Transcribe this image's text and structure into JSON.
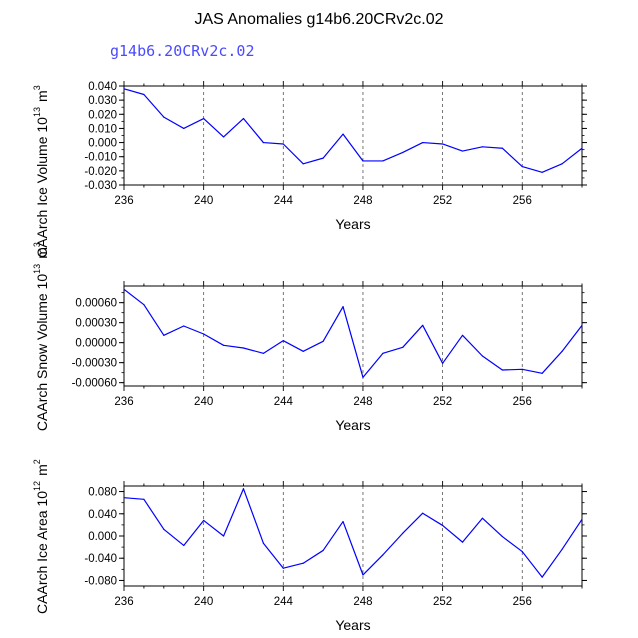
{
  "title": "JAS Anomalies g14b6.20CRv2c.02",
  "subtitle": "g14b6.20CRv2c.02",
  "colors": {
    "series": "#0000ff",
    "subtitle": "#4a4aff",
    "axis": "#000000",
    "grid": "#555555"
  },
  "chart_data": [
    {
      "type": "line",
      "name": "ice-volume",
      "ylabel": "CAArch Ice Volume",
      "ylabel_unit": "10<13> m<3>",
      "xlabel": "Years",
      "x": [
        236,
        237,
        238,
        239,
        240,
        241,
        242,
        243,
        244,
        245,
        246,
        247,
        248,
        249,
        250,
        251,
        252,
        253,
        254,
        255,
        256,
        257,
        258,
        259
      ],
      "values": [
        0.038,
        0.034,
        0.018,
        0.01,
        0.017,
        0.004,
        0.017,
        0.0,
        -0.001,
        -0.015,
        -0.011,
        0.006,
        -0.013,
        -0.013,
        -0.007,
        0.0,
        -0.001,
        -0.006,
        -0.003,
        -0.004,
        -0.017,
        -0.021,
        -0.015,
        -0.004
      ],
      "xlim": [
        236,
        259
      ],
      "ylim": [
        -0.03,
        0.04
      ],
      "yticks": [
        -0.03,
        -0.02,
        -0.01,
        0.0,
        0.01,
        0.02,
        0.03,
        0.04
      ],
      "ytick_labels": [
        "-0.030",
        "-0.020",
        "-0.010",
        "0.000",
        "0.010",
        "0.020",
        "0.030",
        "0.040"
      ],
      "xticks": [
        236,
        240,
        244,
        248,
        252,
        256
      ],
      "xtick_labels": [
        "236",
        "240",
        "244",
        "248",
        "252",
        "256"
      ],
      "gridlines_x": [
        240,
        244,
        248,
        252,
        256
      ]
    },
    {
      "type": "line",
      "name": "snow-volume",
      "ylabel": "CAArch Snow Volume",
      "ylabel_unit": "10<13> m<3>",
      "xlabel": "Years",
      "x": [
        236,
        237,
        238,
        239,
        240,
        241,
        242,
        243,
        244,
        245,
        246,
        247,
        248,
        249,
        250,
        251,
        252,
        253,
        254,
        255,
        256,
        257,
        258,
        259
      ],
      "values": [
        0.0008,
        0.00057,
        0.00011,
        0.00025,
        0.00013,
        -4e-05,
        -8e-05,
        -0.00016,
        3e-05,
        -0.00013,
        2e-05,
        0.00054,
        -0.00052,
        -0.00016,
        -7e-05,
        0.00026,
        -0.00031,
        0.00011,
        -0.0002,
        -0.00041,
        -0.0004,
        -0.00046,
        -0.00013,
        0.00026
      ],
      "xlim": [
        236,
        259
      ],
      "ylim": [
        -0.00065,
        0.00085
      ],
      "yticks": [
        -0.0006,
        -0.0003,
        0.0,
        0.0003,
        0.0006
      ],
      "ytick_labels": [
        "-0.00060",
        "-0.00030",
        "0.00000",
        "0.00030",
        "0.00060"
      ],
      "xticks": [
        236,
        240,
        244,
        248,
        252,
        256
      ],
      "xtick_labels": [
        "236",
        "240",
        "244",
        "248",
        "252",
        "256"
      ],
      "gridlines_x": [
        240,
        244,
        248,
        252,
        256
      ]
    },
    {
      "type": "line",
      "name": "ice-area",
      "ylabel": "CAArch Ice Area",
      "ylabel_unit": "10<12> m<2>",
      "xlabel": "Years",
      "x": [
        236,
        237,
        238,
        239,
        240,
        241,
        242,
        243,
        244,
        245,
        246,
        247,
        248,
        249,
        250,
        251,
        252,
        253,
        254,
        255,
        256,
        257,
        258,
        259
      ],
      "values": [
        0.069,
        0.066,
        0.012,
        -0.017,
        0.028,
        0.0,
        0.085,
        -0.013,
        -0.058,
        -0.049,
        -0.026,
        0.026,
        -0.07,
        -0.034,
        0.005,
        0.041,
        0.019,
        -0.011,
        0.032,
        -0.001,
        -0.028,
        -0.074,
        -0.024,
        0.03
      ],
      "xlim": [
        236,
        259
      ],
      "ylim": [
        -0.09,
        0.09
      ],
      "yticks": [
        -0.08,
        -0.04,
        0.0,
        0.04,
        0.08
      ],
      "ytick_labels": [
        "-0.080",
        "-0.040",
        "0.000",
        "0.040",
        "0.080"
      ],
      "xticks": [
        236,
        240,
        244,
        248,
        252,
        256
      ],
      "xtick_labels": [
        "236",
        "240",
        "244",
        "248",
        "252",
        "256"
      ],
      "gridlines_x": [
        240,
        244,
        248,
        252,
        256
      ]
    }
  ]
}
